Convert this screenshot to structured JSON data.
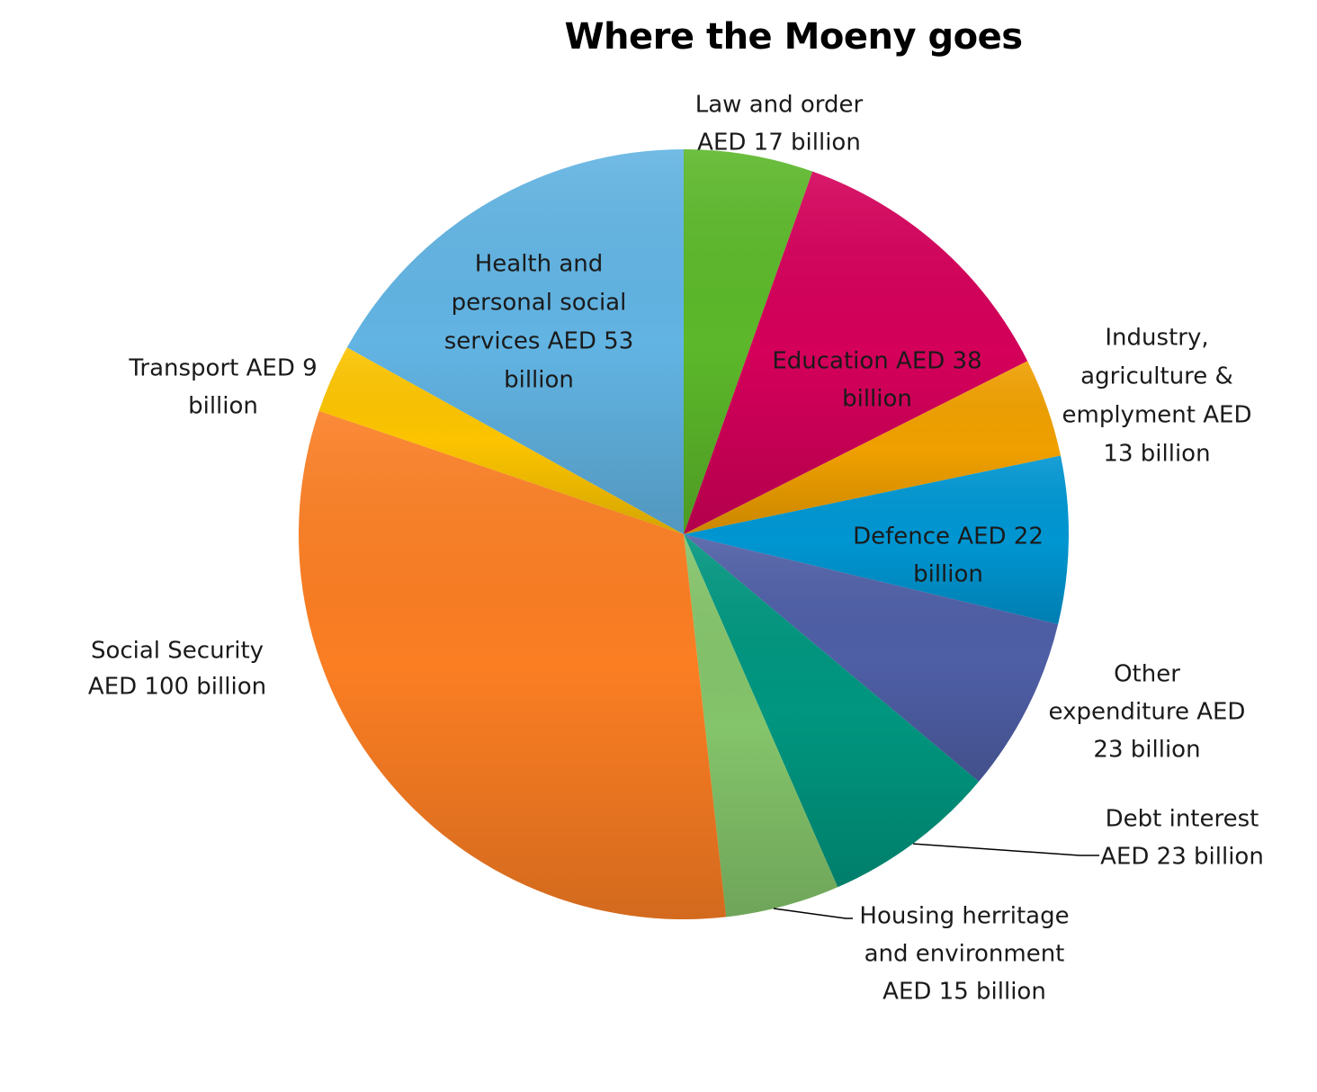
{
  "chart_data": {
    "type": "pie",
    "title": "Where the Moeny goes",
    "start_angle_deg": 0,
    "direction": "clockwise",
    "slices": [
      {
        "label_lines": [
          "Law and order",
          "AED 17 billion"
        ],
        "value": 17,
        "color": "#5cb82a"
      },
      {
        "label_lines": [
          "Education AED 38",
          "billion"
        ],
        "value": 38,
        "color": "#d4005a"
      },
      {
        "label_lines": [
          "Industry,",
          "agriculture &",
          "emplyment AED",
          "13 billion"
        ],
        "value": 13,
        "color": "#f0a000"
      },
      {
        "label_lines": [
          "Defence AED 22",
          "billion"
        ],
        "value": 22,
        "color": "#0096d2"
      },
      {
        "label_lines": [
          "Other",
          "expenditure AED",
          "23 billion"
        ],
        "value": 23,
        "color": "#4f5fa6"
      },
      {
        "label_lines": [
          "Debt interest",
          "AED 23 billion"
        ],
        "value": 23,
        "color": "#00967f"
      },
      {
        "label_lines": [
          "Housing herritage",
          "and environment",
          "AED 15 billion"
        ],
        "value": 15,
        "color": "#84c46a"
      },
      {
        "label_lines": [
          "Social Security",
          "AED 100 billion"
        ],
        "value": 100,
        "color": "#fb7e23"
      },
      {
        "label_lines": [
          "Transport AED 9",
          "billion"
        ],
        "value": 9,
        "color": "#fcc400"
      },
      {
        "label_lines": [
          "Health and",
          "personal social",
          "services AED 53",
          "billion"
        ],
        "value": 53,
        "color": "#62b4e3"
      }
    ]
  }
}
